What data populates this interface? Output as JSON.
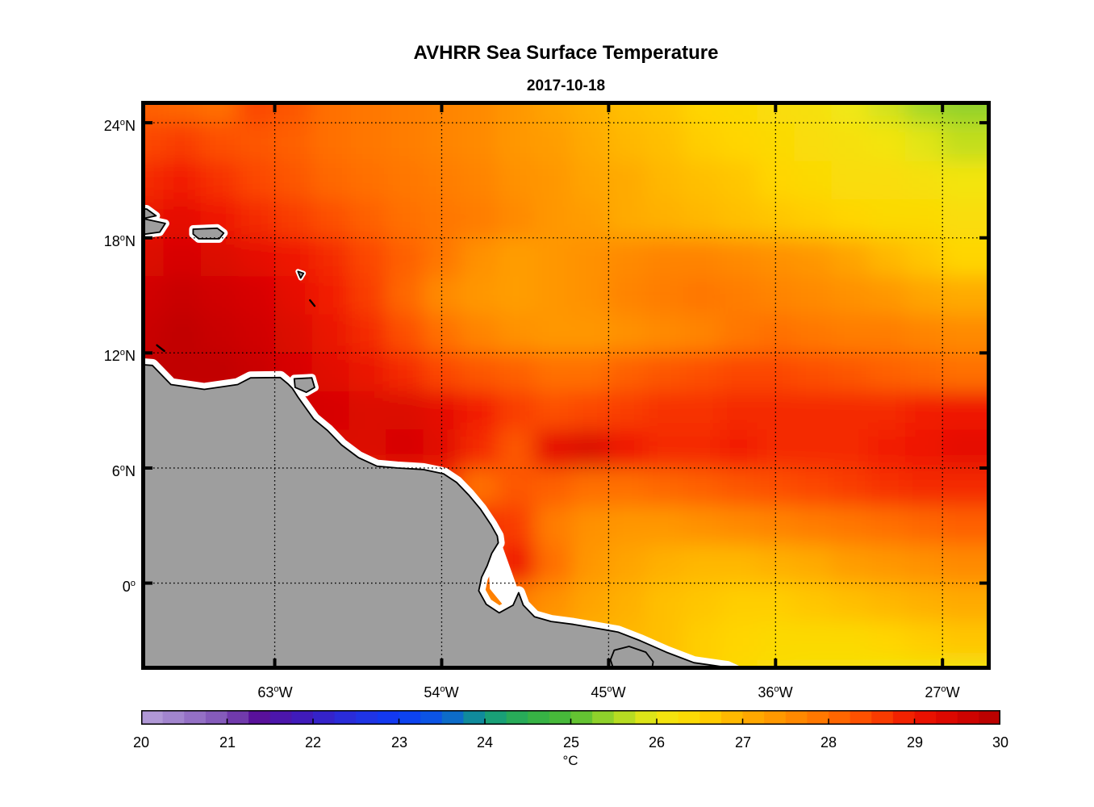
{
  "chart_data": {
    "type": "heatmap",
    "title": "AVHRR Sea Surface Temperature",
    "date": "2017-10-18",
    "units": "°C",
    "lon_range": [
      -70.2,
      -24.4
    ],
    "lat_range": [
      -4.52,
      25.14
    ],
    "grid": "on",
    "axes": {
      "degree_char": "o",
      "lat_ticks": [
        {
          "v": 24,
          "d": "24",
          "h": "N"
        },
        {
          "v": 18,
          "d": "18",
          "h": "N"
        },
        {
          "v": 12,
          "d": "12",
          "h": "N"
        },
        {
          "v": 6,
          "d": "6",
          "h": "N"
        },
        {
          "v": 0,
          "d": "0",
          "h": ""
        }
      ],
      "lon_ticks": [
        {
          "v": -63,
          "d": "63",
          "h": "W"
        },
        {
          "v": -54,
          "d": "54",
          "h": "W"
        },
        {
          "v": -45,
          "d": "45",
          "h": "W"
        },
        {
          "v": -36,
          "d": "36",
          "h": "W"
        },
        {
          "v": -27,
          "d": "27",
          "h": "W"
        }
      ]
    },
    "colorbar": {
      "label": "°C",
      "min": 20,
      "max": 30,
      "ticks": [
        20,
        21,
        22,
        23,
        24,
        25,
        26,
        27,
        28,
        29,
        30
      ],
      "levels": 40,
      "orientation": "horizontal"
    },
    "colormap_stops": [
      [
        20.0,
        "#b7a2da"
      ],
      [
        20.5,
        "#9b7bca"
      ],
      [
        21.0,
        "#7e50b6"
      ],
      [
        21.35,
        "#5a1199"
      ],
      [
        22.0,
        "#3a1ec3"
      ],
      [
        22.5,
        "#2531e0"
      ],
      [
        23.0,
        "#0d3bf5"
      ],
      [
        23.5,
        "#0b5cdf"
      ],
      [
        24.0,
        "#129b86"
      ],
      [
        24.5,
        "#2fb04a"
      ],
      [
        25.0,
        "#4fbc35"
      ],
      [
        25.5,
        "#a4d827"
      ],
      [
        26.0,
        "#f0e813"
      ],
      [
        26.5,
        "#ffd500"
      ],
      [
        27.0,
        "#ffb000"
      ],
      [
        27.5,
        "#ff9100"
      ],
      [
        28.0,
        "#ff7000"
      ],
      [
        28.5,
        "#fc4700"
      ],
      [
        29.0,
        "#ef1500"
      ],
      [
        29.5,
        "#d70400"
      ],
      [
        30.0,
        "#b30000"
      ]
    ],
    "grid_lon": [
      -70,
      -68,
      -66,
      -64,
      -62,
      -60,
      -58,
      -56,
      -54,
      -52,
      -50,
      -48,
      -46,
      -44,
      -42,
      -40,
      -38,
      -36,
      -34,
      -32,
      -30,
      -28,
      -26
    ],
    "grid_lat": [
      25,
      23,
      21,
      19,
      17,
      15,
      13,
      11,
      9,
      7,
      5,
      3,
      1,
      -1,
      -3,
      -5
    ],
    "sst": [
      [
        28.2,
        28.1,
        28.0,
        28.5,
        28.3,
        28.0,
        27.9,
        27.8,
        27.7,
        27.6,
        27.4,
        27.2,
        27.0,
        26.8,
        26.7,
        26.5,
        26.4,
        26.3,
        26.2,
        26.0,
        25.8,
        25.5,
        25.4
      ],
      [
        28.5,
        28.6,
        28.4,
        28.3,
        28.2,
        28.0,
        27.9,
        27.8,
        27.7,
        27.6,
        27.4,
        27.3,
        27.1,
        26.9,
        26.8,
        26.6,
        26.5,
        26.4,
        26.3,
        26.2,
        26.1,
        25.9,
        25.7
      ],
      [
        28.8,
        28.9,
        28.7,
        28.5,
        28.3,
        28.1,
        28.0,
        27.9,
        27.8,
        27.7,
        27.5,
        27.4,
        27.2,
        27.1,
        26.9,
        26.8,
        26.7,
        26.5,
        26.4,
        26.3,
        26.3,
        26.2,
        26.1
      ],
      [
        29.1,
        29.2,
        29.0,
        28.8,
        28.6,
        28.4,
        28.2,
        28.0,
        27.9,
        27.8,
        27.6,
        27.4,
        27.3,
        27.1,
        27.0,
        26.9,
        26.8,
        26.7,
        26.6,
        26.5,
        26.4,
        26.4,
        26.3
      ],
      [
        29.4,
        29.5,
        29.4,
        29.2,
        29.0,
        28.8,
        28.5,
        28.2,
        27.9,
        27.5,
        27.3,
        27.4,
        27.5,
        27.6,
        27.7,
        27.7,
        27.6,
        27.5,
        27.4,
        27.2,
        26.9,
        26.7,
        26.5
      ],
      [
        29.6,
        29.7,
        29.6,
        29.5,
        29.2,
        28.9,
        28.6,
        28.1,
        27.6,
        27.4,
        27.3,
        27.4,
        27.5,
        27.7,
        27.8,
        27.9,
        27.8,
        27.7,
        27.6,
        27.5,
        27.4,
        27.2,
        27.1
      ],
      [
        29.7,
        29.8,
        29.7,
        29.6,
        29.4,
        29.1,
        28.8,
        28.4,
        28.0,
        27.7,
        27.5,
        27.4,
        27.4,
        27.5,
        27.6,
        27.7,
        27.9,
        28.0,
        27.9,
        27.8,
        27.8,
        27.7,
        27.6
      ],
      [
        29.8,
        29.8,
        29.8,
        29.7,
        29.5,
        29.3,
        29.1,
        28.8,
        28.5,
        28.3,
        28.2,
        28.0,
        28.0,
        28.2,
        28.3,
        28.4,
        28.5,
        28.5,
        28.4,
        28.3,
        28.2,
        28.1,
        28.0
      ],
      [
        29.6,
        29.6,
        29.6,
        29.6,
        29.6,
        29.5,
        29.4,
        29.4,
        29.2,
        28.9,
        28.6,
        28.4,
        28.5,
        28.6,
        28.7,
        28.7,
        28.8,
        28.8,
        28.8,
        28.8,
        28.8,
        28.9,
        29.0
      ],
      [
        29.4,
        29.4,
        29.4,
        29.4,
        29.4,
        29.4,
        29.4,
        29.5,
        29.3,
        28.8,
        28.3,
        29.2,
        29.4,
        29.0,
        28.8,
        28.8,
        28.9,
        28.8,
        28.8,
        28.8,
        28.9,
        29.0,
        29.2
      ],
      [
        28.8,
        28.8,
        28.8,
        28.8,
        28.8,
        28.8,
        28.8,
        28.8,
        28.8,
        28.0,
        28.3,
        28.2,
        28.0,
        28.0,
        28.1,
        28.2,
        28.3,
        28.4,
        28.5,
        28.6,
        28.7,
        28.8,
        28.8
      ],
      [
        28.4,
        28.4,
        28.4,
        28.4,
        28.4,
        28.4,
        28.4,
        28.4,
        28.4,
        28.8,
        28.6,
        27.8,
        27.5,
        27.4,
        27.4,
        27.5,
        27.6,
        27.7,
        27.8,
        27.9,
        28.0,
        28.1,
        28.2
      ],
      [
        28.0,
        28.0,
        28.0,
        28.0,
        28.0,
        28.0,
        28.0,
        28.0,
        28.0,
        28.4,
        29.0,
        28.0,
        27.4,
        27.2,
        27.0,
        26.9,
        26.9,
        27.0,
        27.1,
        27.3,
        27.4,
        27.5,
        27.6
      ],
      [
        27.6,
        27.6,
        27.6,
        27.6,
        27.6,
        27.6,
        27.6,
        27.6,
        27.6,
        27.6,
        27.8,
        27.5,
        27.2,
        27.0,
        26.8,
        26.7,
        26.6,
        26.6,
        26.7,
        26.8,
        26.9,
        27.0,
        27.1
      ],
      [
        27.2,
        27.2,
        27.2,
        27.2,
        27.2,
        27.2,
        27.2,
        27.2,
        27.2,
        27.2,
        27.2,
        27.2,
        27.0,
        26.9,
        26.8,
        26.6,
        26.5,
        26.4,
        26.4,
        26.4,
        26.5,
        26.6,
        26.7
      ],
      [
        27.0,
        27.0,
        27.0,
        27.0,
        27.0,
        27.0,
        27.0,
        27.0,
        27.0,
        27.0,
        27.0,
        27.0,
        26.9,
        26.8,
        26.7,
        26.6,
        26.4,
        26.3,
        26.2,
        26.2,
        26.1,
        26.1,
        26.0
      ]
    ],
    "land": {
      "fill": "#9e9e9e",
      "coast_mask": "#ffffff",
      "outline": "#000000",
      "polygons": [
        {
          "name": "south-america-mainland",
          "halo": 16,
          "pts": [
            [
              -71,
              11.45
            ],
            [
              -69.6,
              11.35
            ],
            [
              -68.6,
              10.35
            ],
            [
              -66.8,
              10.1
            ],
            [
              -65.0,
              10.35
            ],
            [
              -64.3,
              10.7
            ],
            [
              -62.7,
              10.72
            ],
            [
              -62.3,
              10.4
            ],
            [
              -62.05,
              10.15
            ],
            [
              -61.75,
              9.7
            ],
            [
              -60.9,
              8.55
            ],
            [
              -60.15,
              7.95
            ],
            [
              -59.4,
              7.2
            ],
            [
              -58.5,
              6.55
            ],
            [
              -57.5,
              6.1
            ],
            [
              -56.4,
              6.0
            ],
            [
              -55.0,
              5.92
            ],
            [
              -53.9,
              5.7
            ],
            [
              -53.2,
              5.25
            ],
            [
              -52.55,
              4.6
            ],
            [
              -51.9,
              3.85
            ],
            [
              -51.35,
              3.05
            ],
            [
              -51.0,
              2.45
            ],
            [
              -50.95,
              2.1
            ],
            [
              -51.3,
              1.55
            ],
            [
              -51.55,
              0.9
            ],
            [
              -51.85,
              0.3
            ],
            [
              -52.0,
              -0.4
            ],
            [
              -51.6,
              -1.1
            ],
            [
              -50.9,
              -1.55
            ],
            [
              -50.15,
              -1.15
            ],
            [
              -49.85,
              -0.5
            ],
            [
              -49.6,
              -1.15
            ],
            [
              -49.0,
              -1.75
            ],
            [
              -48.1,
              -2.0
            ],
            [
              -46.9,
              -2.15
            ],
            [
              -45.7,
              -2.35
            ],
            [
              -44.5,
              -2.55
            ],
            [
              -43.3,
              -3.0
            ],
            [
              -41.9,
              -3.6
            ],
            [
              -40.4,
              -4.15
            ],
            [
              -38.6,
              -4.4
            ],
            [
              -36.8,
              -5.2
            ],
            [
              -71,
              -5.2
            ]
          ]
        },
        {
          "name": "hispaniola-east",
          "halo": 10,
          "pts": [
            [
              -71,
              19.6
            ],
            [
              -69.9,
              19.5
            ],
            [
              -69.4,
              19.15
            ],
            [
              -70.1,
              19.0
            ],
            [
              -68.9,
              18.75
            ],
            [
              -69.2,
              18.3
            ],
            [
              -70.3,
              18.15
            ],
            [
              -71,
              18.1
            ]
          ]
        },
        {
          "name": "puerto-rico",
          "halo": 10,
          "pts": [
            [
              -67.4,
              18.45
            ],
            [
              -66.1,
              18.5
            ],
            [
              -65.75,
              18.25
            ],
            [
              -66.0,
              17.95
            ],
            [
              -67.1,
              17.95
            ],
            [
              -67.4,
              18.2
            ]
          ]
        },
        {
          "name": "trinidad",
          "halo": 10,
          "pts": [
            [
              -61.95,
              10.65
            ],
            [
              -61.0,
              10.7
            ],
            [
              -60.85,
              10.2
            ],
            [
              -61.3,
              9.95
            ],
            [
              -61.9,
              10.2
            ]
          ]
        },
        {
          "name": "sao-luis-island",
          "halo": 10,
          "pts": [
            [
              -44.7,
              -3.5
            ],
            [
              -43.9,
              -3.3
            ],
            [
              -43.0,
              -3.6
            ],
            [
              -42.6,
              -4.1
            ],
            [
              -42.8,
              -5.2
            ],
            [
              -44.5,
              -5.2
            ],
            [
              -44.9,
              -4.0
            ]
          ]
        },
        {
          "name": "guadeloupe",
          "halo": 6,
          "pts": [
            [
              -61.75,
              16.25
            ],
            [
              -61.45,
              16.15
            ],
            [
              -61.6,
              15.9
            ]
          ]
        }
      ],
      "islet_lines": [
        {
          "name": "martinique",
          "pts": [
            [
              -61.1,
              14.75
            ],
            [
              -60.85,
              14.45
            ]
          ]
        },
        {
          "name": "curacao",
          "pts": [
            [
              -69.35,
              12.4
            ],
            [
              -68.95,
              12.1
            ]
          ]
        }
      ],
      "estuary_mask": [
        [
          -50.9,
          2.4
        ],
        [
          -49.9,
          -0.3
        ],
        [
          -49.4,
          -1.0
        ],
        [
          -50.6,
          -1.25
        ],
        [
          -51.4,
          -0.3
        ],
        [
          -51.5,
          1.3
        ]
      ]
    }
  }
}
